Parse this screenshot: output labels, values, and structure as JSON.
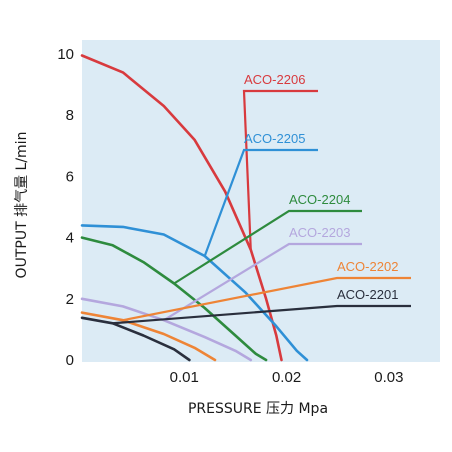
{
  "chart_data": {
    "type": "line",
    "xlabel": "PRESSURE 压力 Mpa",
    "ylabel": "OUTPUT 排气量 L/min",
    "xlim": [
      0,
      0.035
    ],
    "ylim": [
      0,
      10
    ],
    "xticks": [
      "0.01",
      "0.02",
      "0.03"
    ],
    "yticks": [
      "0",
      "2",
      "4",
      "6",
      "8",
      "10"
    ],
    "grid": false,
    "background": "#dcebf5",
    "series": [
      {
        "name": "ACO-2206",
        "color": "#d83a3e",
        "points": [
          [
            0,
            9.95
          ],
          [
            0.004,
            9.4
          ],
          [
            0.008,
            8.3
          ],
          [
            0.011,
            7.2
          ],
          [
            0.014,
            5.5
          ],
          [
            0.0165,
            3.6
          ],
          [
            0.018,
            2.0
          ],
          [
            0.019,
            0.8
          ],
          [
            0.0195,
            0
          ]
        ]
      },
      {
        "name": "ACO-2205",
        "color": "#2f90d6",
        "points": [
          [
            0,
            4.4
          ],
          [
            0.004,
            4.35
          ],
          [
            0.008,
            4.1
          ],
          [
            0.012,
            3.4
          ],
          [
            0.016,
            2.2
          ],
          [
            0.019,
            1.1
          ],
          [
            0.021,
            0.3
          ],
          [
            0.022,
            0
          ]
        ]
      },
      {
        "name": "ACO-2204",
        "color": "#2e8b3e",
        "points": [
          [
            0,
            4.0
          ],
          [
            0.003,
            3.75
          ],
          [
            0.006,
            3.2
          ],
          [
            0.009,
            2.5
          ],
          [
            0.012,
            1.7
          ],
          [
            0.015,
            0.8
          ],
          [
            0.017,
            0.2
          ],
          [
            0.018,
            0
          ]
        ]
      },
      {
        "name": "ACO-2203",
        "color": "#b4a7de",
        "points": [
          [
            0,
            2.0
          ],
          [
            0.004,
            1.75
          ],
          [
            0.008,
            1.3
          ],
          [
            0.012,
            0.75
          ],
          [
            0.015,
            0.3
          ],
          [
            0.0165,
            0
          ]
        ]
      },
      {
        "name": "ACO-2202",
        "color": "#ee8436",
        "points": [
          [
            0,
            1.55
          ],
          [
            0.004,
            1.3
          ],
          [
            0.008,
            0.85
          ],
          [
            0.011,
            0.4
          ],
          [
            0.013,
            0
          ]
        ]
      },
      {
        "name": "ACO-2201",
        "color": "#2a2f3d",
        "points": [
          [
            0,
            1.38
          ],
          [
            0.003,
            1.2
          ],
          [
            0.006,
            0.8
          ],
          [
            0.009,
            0.35
          ],
          [
            0.0105,
            0
          ]
        ]
      }
    ]
  }
}
